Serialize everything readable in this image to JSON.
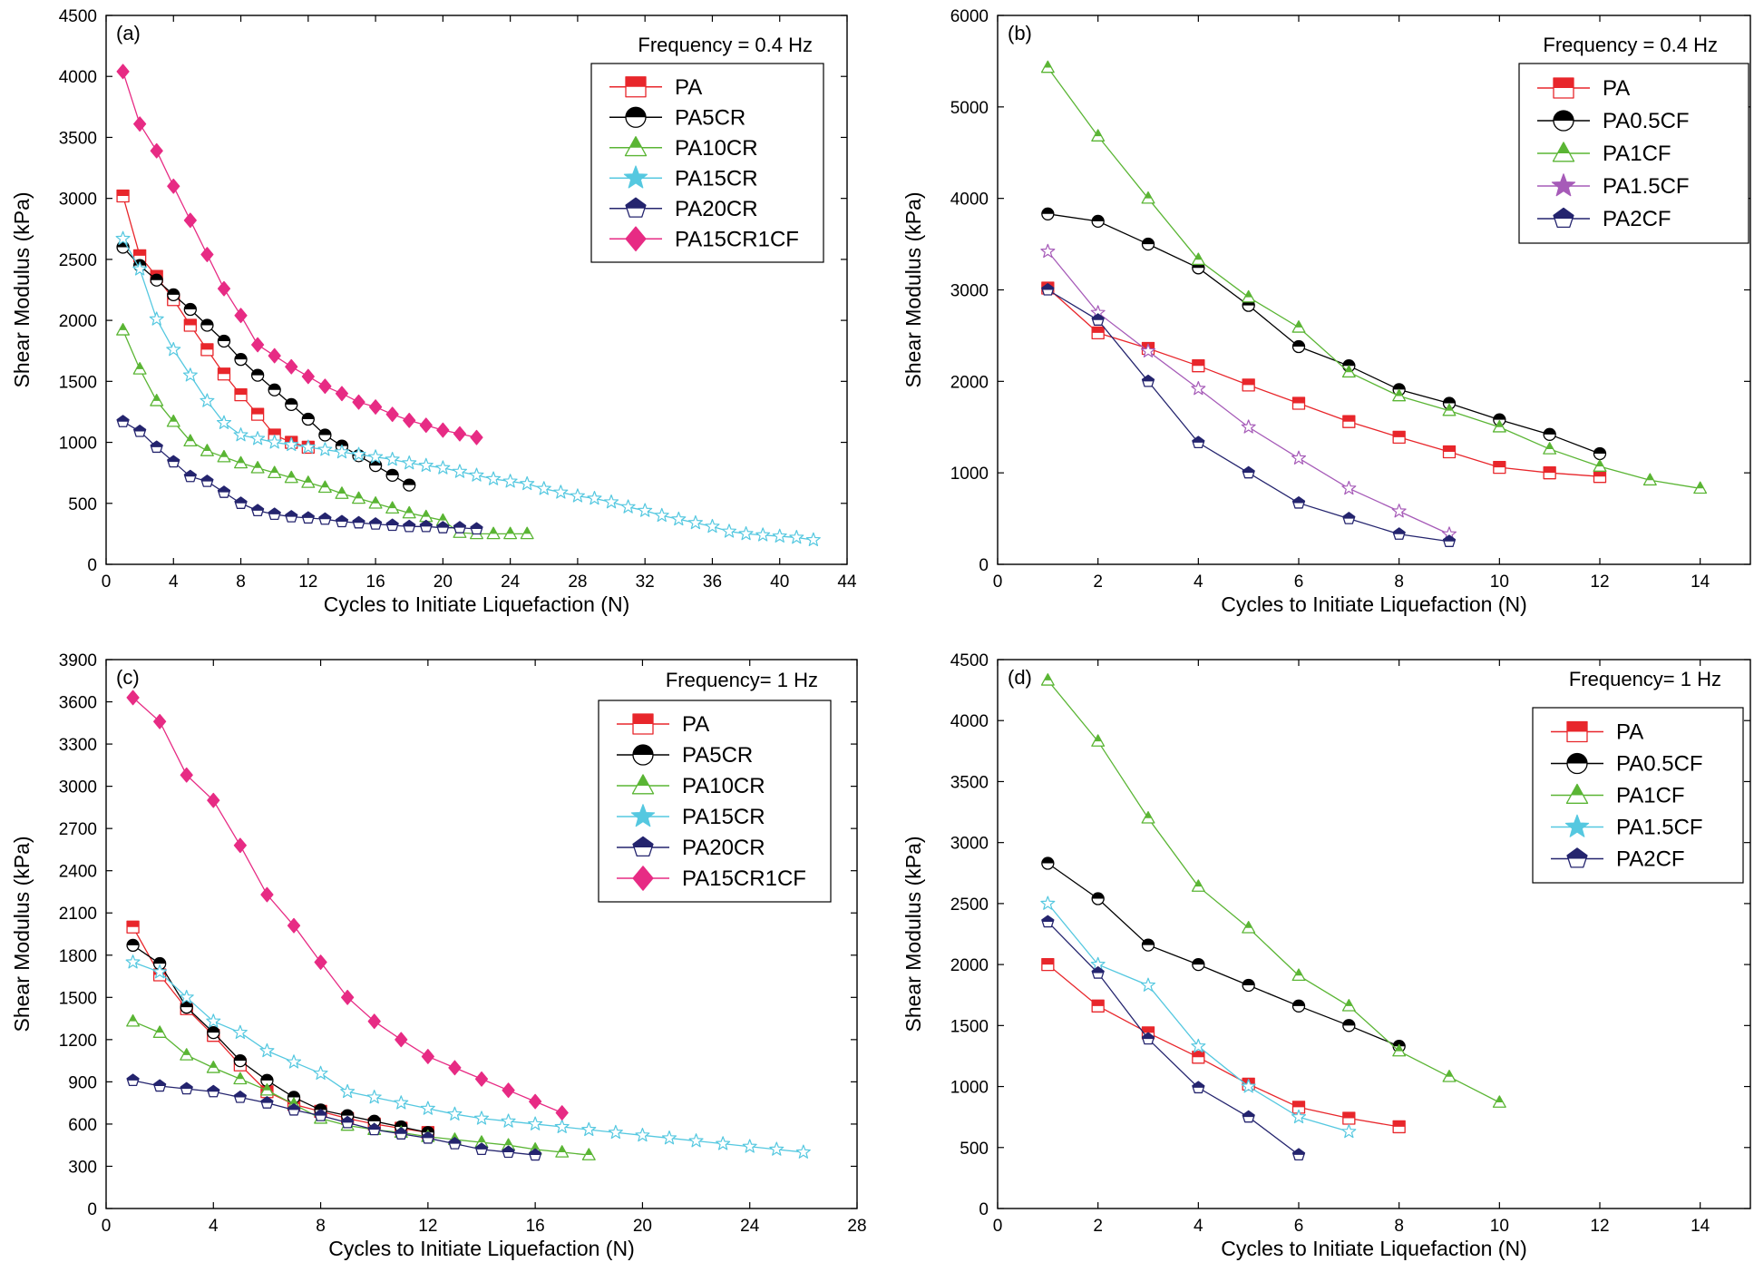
{
  "chart_data": [
    {
      "panel": "(a)",
      "type": "line",
      "annotation": "Frequency = 0.4 Hz",
      "xlabel": "Cycles to Initiate Liquefaction (N)",
      "ylabel": "Shear Modulus (kPa)",
      "xlim": [
        0,
        44
      ],
      "ylim": [
        0,
        4500
      ],
      "xticks": [
        0,
        4,
        8,
        12,
        16,
        20,
        24,
        28,
        32,
        36,
        40,
        44
      ],
      "yticks": [
        0,
        500,
        1000,
        1500,
        2000,
        2500,
        3000,
        3500,
        4000,
        4500
      ],
      "legend_position": "top-right",
      "series": [
        {
          "name": "PA",
          "color": "#e8262b",
          "marker": "square",
          "x": [
            1,
            2,
            3,
            4,
            5,
            6,
            7,
            8,
            9,
            10,
            11,
            12
          ],
          "y": [
            3020,
            2530,
            2360,
            2170,
            1960,
            1760,
            1560,
            1390,
            1230,
            1060,
            1000,
            960
          ]
        },
        {
          "name": "PA5CR",
          "color": "#000000",
          "marker": "circle",
          "x": [
            1,
            2,
            3,
            4,
            5,
            6,
            7,
            8,
            9,
            10,
            11,
            12,
            13,
            14,
            15,
            16,
            17,
            18
          ],
          "y": [
            2600,
            2450,
            2330,
            2210,
            2090,
            1960,
            1830,
            1680,
            1550,
            1430,
            1310,
            1190,
            1060,
            970,
            890,
            810,
            730,
            650
          ]
        },
        {
          "name": "PA10CR",
          "color": "#5ab534",
          "marker": "triangle",
          "x": [
            1,
            2,
            3,
            4,
            5,
            6,
            7,
            8,
            9,
            10,
            11,
            12,
            13,
            14,
            15,
            16,
            17,
            18,
            19,
            20,
            21,
            22,
            23,
            24,
            25
          ],
          "y": [
            1920,
            1600,
            1340,
            1170,
            1010,
            930,
            880,
            830,
            790,
            750,
            710,
            670,
            630,
            580,
            540,
            500,
            460,
            420,
            390,
            360,
            260,
            250,
            250,
            250,
            250
          ]
        },
        {
          "name": "PA15CR",
          "color": "#55c8e0",
          "marker": "star",
          "x": [
            1,
            2,
            3,
            4,
            5,
            6,
            7,
            8,
            9,
            10,
            11,
            12,
            13,
            14,
            15,
            16,
            17,
            18,
            19,
            20,
            21,
            22,
            23,
            24,
            25,
            26,
            27,
            28,
            29,
            30,
            31,
            32,
            33,
            34,
            35,
            36,
            37,
            38,
            39,
            40,
            41,
            42
          ],
          "y": [
            2670,
            2420,
            2010,
            1760,
            1550,
            1340,
            1160,
            1060,
            1030,
            1000,
            980,
            960,
            940,
            920,
            900,
            880,
            860,
            830,
            810,
            790,
            760,
            730,
            700,
            680,
            660,
            620,
            590,
            560,
            540,
            510,
            470,
            440,
            400,
            370,
            340,
            310,
            270,
            250,
            240,
            230,
            220,
            200
          ]
        },
        {
          "name": "PA20CR",
          "color": "#24246e",
          "marker": "pentagon",
          "x": [
            1,
            2,
            3,
            4,
            5,
            6,
            7,
            8,
            9,
            10,
            11,
            12,
            13,
            14,
            15,
            16,
            17,
            18,
            19,
            20,
            21,
            22
          ],
          "y": [
            1170,
            1090,
            960,
            840,
            720,
            680,
            590,
            500,
            440,
            410,
            390,
            380,
            370,
            350,
            340,
            330,
            320,
            310,
            310,
            300,
            300,
            290
          ]
        },
        {
          "name": "PA15CR1CF",
          "color": "#e72b84",
          "marker": "diamond",
          "x": [
            1,
            2,
            3,
            4,
            5,
            6,
            7,
            8,
            9,
            10,
            11,
            12,
            13,
            14,
            15,
            16,
            17,
            18,
            19,
            20,
            21,
            22
          ],
          "y": [
            4040,
            3610,
            3390,
            3100,
            2820,
            2540,
            2260,
            2040,
            1800,
            1710,
            1620,
            1540,
            1460,
            1400,
            1330,
            1290,
            1230,
            1180,
            1140,
            1100,
            1070,
            1040
          ]
        }
      ]
    },
    {
      "panel": "(b)",
      "type": "line",
      "annotation": "Frequency = 0.4 Hz",
      "xlabel": "Cycles to Initiate Liquefaction (N)",
      "ylabel": "Shear Modulus (kPa)",
      "xlim": [
        0,
        15
      ],
      "ylim": [
        0,
        6000
      ],
      "xticks": [
        0,
        2,
        4,
        6,
        8,
        10,
        12,
        14
      ],
      "yticks": [
        0,
        1000,
        2000,
        3000,
        4000,
        5000,
        6000
      ],
      "legend_position": "top-right",
      "series": [
        {
          "name": "PA",
          "color": "#e8262b",
          "marker": "square",
          "x": [
            1,
            2,
            3,
            4,
            5,
            6,
            7,
            8,
            9,
            10,
            11,
            12
          ],
          "y": [
            3020,
            2530,
            2360,
            2170,
            1960,
            1760,
            1560,
            1390,
            1230,
            1060,
            1000,
            960
          ]
        },
        {
          "name": "PA0.5CF",
          "color": "#000000",
          "marker": "circle",
          "x": [
            1,
            2,
            3,
            4,
            5,
            6,
            7,
            8,
            9,
            10,
            11,
            12
          ],
          "y": [
            3830,
            3750,
            3500,
            3240,
            2830,
            2380,
            2170,
            1910,
            1760,
            1580,
            1420,
            1210
          ]
        },
        {
          "name": "PA1CF",
          "color": "#5ab534",
          "marker": "triangle",
          "x": [
            1,
            2,
            3,
            4,
            5,
            6,
            7,
            8,
            9,
            10,
            11,
            12,
            13,
            14
          ],
          "y": [
            5430,
            4680,
            4000,
            3330,
            2920,
            2590,
            2100,
            1840,
            1680,
            1500,
            1260,
            1070,
            920,
            830
          ]
        },
        {
          "name": "PA1.5CF",
          "color": "#a65bb8",
          "marker": "star",
          "x": [
            1,
            2,
            3,
            4,
            5,
            6,
            7,
            8,
            9
          ],
          "y": [
            3420,
            2750,
            2330,
            1920,
            1500,
            1160,
            830,
            580,
            330
          ]
        },
        {
          "name": "PA2CF",
          "color": "#24246e",
          "marker": "pentagon",
          "x": [
            1,
            2,
            3,
            4,
            5,
            6,
            7,
            8,
            9
          ],
          "y": [
            3000,
            2670,
            2000,
            1330,
            1000,
            670,
            500,
            330,
            250
          ]
        }
      ]
    },
    {
      "panel": "(c)",
      "type": "line",
      "annotation": "Frequency= 1 Hz",
      "xlabel": "Cycles to Initiate Liquefaction (N)",
      "ylabel": "Shear Modulus (kPa)",
      "xlim": [
        0,
        28
      ],
      "ylim": [
        0,
        3900
      ],
      "xticks": [
        0,
        4,
        8,
        12,
        16,
        20,
        24,
        28
      ],
      "yticks": [
        0,
        300,
        600,
        900,
        1200,
        1500,
        1800,
        2100,
        2400,
        2700,
        3000,
        3300,
        3600,
        3900
      ],
      "legend_position": "top-right",
      "series": [
        {
          "name": "PA",
          "color": "#e8262b",
          "marker": "square",
          "x": [
            1,
            2,
            3,
            4,
            5,
            6,
            7,
            8,
            9,
            10,
            11,
            12
          ],
          "y": [
            2000,
            1660,
            1420,
            1230,
            1020,
            830,
            740,
            690,
            640,
            600,
            570,
            540
          ]
        },
        {
          "name": "PA5CR",
          "color": "#000000",
          "marker": "circle",
          "x": [
            1,
            2,
            3,
            4,
            5,
            6,
            7,
            8,
            9,
            10,
            11,
            12
          ],
          "y": [
            1870,
            1740,
            1430,
            1250,
            1050,
            910,
            790,
            700,
            660,
            620,
            580,
            540
          ]
        },
        {
          "name": "PA10CR",
          "color": "#5ab534",
          "marker": "triangle",
          "x": [
            1,
            2,
            3,
            4,
            5,
            6,
            7,
            8,
            9,
            10,
            11,
            12,
            13,
            14,
            15,
            16,
            17,
            18
          ],
          "y": [
            1330,
            1250,
            1090,
            1000,
            920,
            840,
            740,
            640,
            590,
            560,
            540,
            510,
            490,
            470,
            450,
            420,
            400,
            380
          ]
        },
        {
          "name": "PA15CR",
          "color": "#55c8e0",
          "marker": "star",
          "x": [
            1,
            2,
            3,
            4,
            5,
            6,
            7,
            8,
            9,
            10,
            11,
            12,
            13,
            14,
            15,
            16,
            17,
            18,
            19,
            20,
            21,
            22,
            23,
            24,
            25,
            26
          ],
          "y": [
            1750,
            1680,
            1500,
            1330,
            1250,
            1120,
            1040,
            960,
            830,
            790,
            750,
            710,
            670,
            640,
            620,
            600,
            580,
            560,
            540,
            520,
            500,
            480,
            460,
            440,
            420,
            400
          ]
        },
        {
          "name": "PA20CR",
          "color": "#24246e",
          "marker": "pentagon",
          "x": [
            1,
            2,
            3,
            4,
            5,
            6,
            7,
            8,
            9,
            10,
            11,
            12,
            13,
            14,
            15,
            16
          ],
          "y": [
            910,
            870,
            850,
            830,
            790,
            750,
            700,
            660,
            610,
            560,
            530,
            500,
            460,
            420,
            400,
            380
          ]
        },
        {
          "name": "PA15CR1CF",
          "color": "#e72b84",
          "marker": "diamond",
          "x": [
            1,
            2,
            3,
            4,
            5,
            6,
            7,
            8,
            9,
            10,
            11,
            12,
            13,
            14,
            15,
            16,
            17
          ],
          "y": [
            3630,
            3460,
            3080,
            2900,
            2580,
            2230,
            2010,
            1750,
            1500,
            1330,
            1200,
            1080,
            1000,
            920,
            840,
            760,
            680
          ]
        }
      ]
    },
    {
      "panel": "(d)",
      "type": "line",
      "annotation": "Frequency= 1 Hz",
      "xlabel": "Cycles to Initiate Liquefaction (N)",
      "ylabel": "Shear Modulus (kPa)",
      "xlim": [
        0,
        15
      ],
      "ylim": [
        0,
        4500
      ],
      "xticks": [
        0,
        2,
        4,
        6,
        8,
        10,
        12,
        14
      ],
      "yticks": [
        0,
        500,
        1000,
        1500,
        2000,
        2500,
        3000,
        3500,
        4000,
        4500
      ],
      "legend_position": "top-right",
      "series": [
        {
          "name": "PA",
          "color": "#e8262b",
          "marker": "square",
          "x": [
            1,
            2,
            3,
            4,
            5,
            6,
            7,
            8
          ],
          "y": [
            2000,
            1660,
            1440,
            1240,
            1020,
            830,
            740,
            670
          ]
        },
        {
          "name": "PA0.5CF",
          "color": "#000000",
          "marker": "circle",
          "x": [
            1,
            2,
            3,
            4,
            5,
            6,
            7,
            8
          ],
          "y": [
            2830,
            2540,
            2160,
            2000,
            1830,
            1660,
            1500,
            1330
          ]
        },
        {
          "name": "PA1CF",
          "color": "#5ab534",
          "marker": "triangle",
          "x": [
            1,
            2,
            3,
            4,
            5,
            6,
            7,
            8,
            9,
            10
          ],
          "y": [
            4330,
            3830,
            3200,
            2640,
            2300,
            1910,
            1660,
            1290,
            1080,
            870
          ]
        },
        {
          "name": "PA1.5CF",
          "color": "#55c8e0",
          "marker": "star",
          "x": [
            1,
            2,
            3,
            4,
            5,
            6,
            7
          ],
          "y": [
            2500,
            2000,
            1830,
            1330,
            1000,
            750,
            630
          ]
        },
        {
          "name": "PA2CF",
          "color": "#24246e",
          "marker": "pentagon",
          "x": [
            1,
            2,
            3,
            4,
            5,
            6
          ],
          "y": [
            2350,
            1930,
            1390,
            990,
            750,
            440
          ]
        }
      ]
    }
  ]
}
